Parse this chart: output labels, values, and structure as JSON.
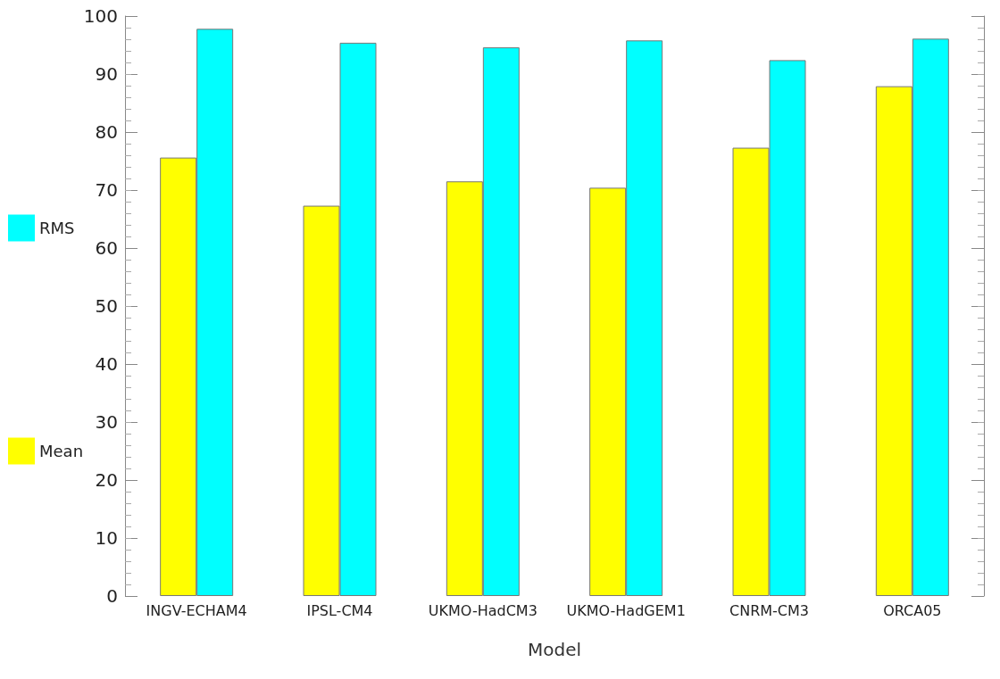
{
  "chart_data": {
    "type": "bar",
    "xlabel": "Model",
    "categories": [
      "INGV-ECHAM4",
      "IPSL-CM4",
      "UKMO-HadCM3",
      "UKMO-HadGEM1",
      "CNRM-CM3",
      "ORCA05"
    ],
    "series": [
      {
        "name": "Mean",
        "color": "#ffff00",
        "values": [
          75.6,
          67.3,
          71.5,
          70.4,
          77.3,
          87.9
        ]
      },
      {
        "name": "RMS",
        "color": "#00ffff",
        "values": [
          97.8,
          95.4,
          94.6,
          95.8,
          92.4,
          96.1
        ]
      }
    ],
    "ylim": [
      0,
      100
    ],
    "yticks": [
      0,
      10,
      20,
      30,
      40,
      50,
      60,
      70,
      80,
      90,
      100
    ],
    "grid": false,
    "legend": "left"
  }
}
